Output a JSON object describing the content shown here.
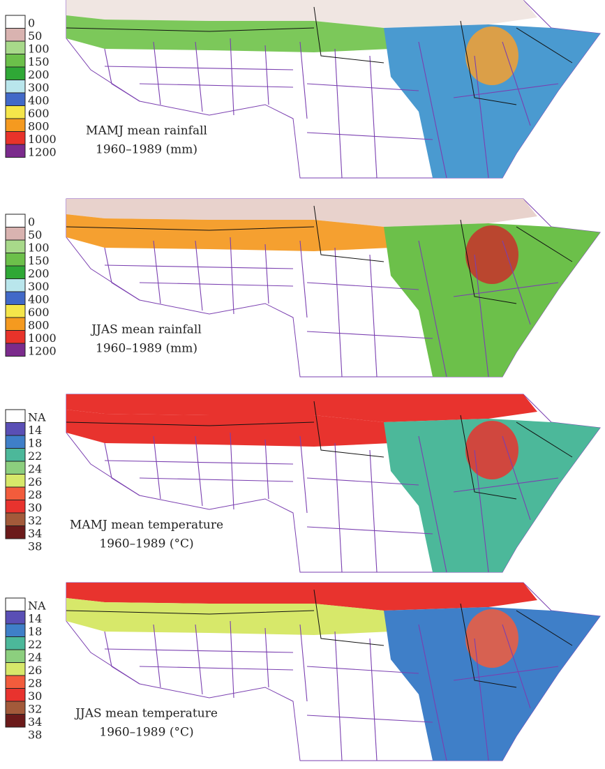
{
  "panels": [
    {
      "legend": {
        "labels": [
          "0",
          "50",
          "100",
          "150",
          "200",
          "300",
          "400",
          "600",
          "800",
          "1000",
          "1200"
        ],
        "colors": [
          "#ffffff",
          "#d9b3b0",
          "#a8d98a",
          "#6cc04a",
          "#2fa836",
          "#b9e6ec",
          "#4169c8",
          "#f5e64a",
          "#f59a1f",
          "#e8332a",
          "#7b2b8c"
        ]
      },
      "caption": [
        "MAMJ mean rainfall",
        "1960–1989 (mm)"
      ]
    },
    {
      "legend": {
        "labels": [
          "0",
          "50",
          "100",
          "150",
          "200",
          "300",
          "400",
          "600",
          "800",
          "1000",
          "1200"
        ],
        "colors": [
          "#ffffff",
          "#d9b3b0",
          "#a8d98a",
          "#6cc04a",
          "#2fa836",
          "#b9e6ec",
          "#4169c8",
          "#f5e64a",
          "#f59a1f",
          "#e8332a",
          "#7b2b8c"
        ]
      },
      "caption": [
        "JJAS mean rainfall",
        "1960–1989 (mm)"
      ]
    },
    {
      "legend": {
        "labels": [
          "NA",
          "14",
          "18",
          "22",
          "24",
          "26",
          "28",
          "30",
          "32",
          "34",
          "38"
        ],
        "colors": [
          "#ffffff",
          "#5a4fb5",
          "#3f7fc8",
          "#4cb89a",
          "#8ccf7e",
          "#d7e86a",
          "#f25c3c",
          "#e8332e",
          "#a35a3a",
          "#6b1a1a"
        ]
      },
      "caption": [
        "MAMJ mean temperature",
        "1960–1989 (°C)"
      ]
    },
    {
      "legend": {
        "labels": [
          "NA",
          "14",
          "18",
          "22",
          "24",
          "26",
          "28",
          "30",
          "32",
          "34",
          "38"
        ],
        "colors": [
          "#ffffff",
          "#5a4fb5",
          "#3f7fc8",
          "#4cb89a",
          "#8ccf7e",
          "#d7e86a",
          "#f25c3c",
          "#e8332e",
          "#a35a3a",
          "#6b1a1a"
        ]
      },
      "caption": [
        "JJAS mean temperature",
        "1960–1989 (°C)"
      ]
    }
  ]
}
